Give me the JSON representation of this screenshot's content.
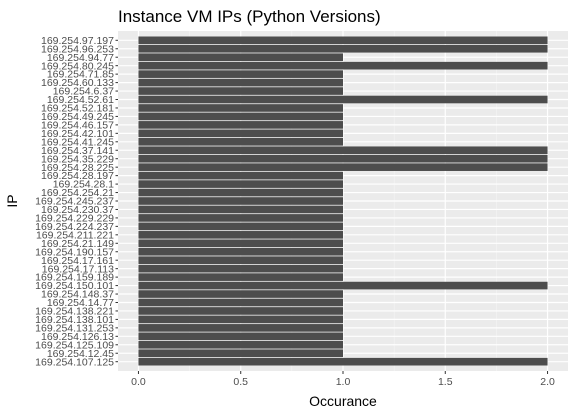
{
  "chart_data": {
    "type": "bar",
    "orientation": "horizontal",
    "title": "Instance VM IPs (Python Versions)",
    "xlabel": "Occurance",
    "ylabel": "IP",
    "xlim": [
      0,
      2
    ],
    "xticks": [
      "0.0",
      "0.5",
      "1.0",
      "1.5",
      "2.0"
    ],
    "grid": true,
    "background": "#ebebeb",
    "bar_color": "#4d4d4d",
    "categories": [
      "169.254.97.197",
      "169.254.96.253",
      "169.254.94.77",
      "169.254.80.245",
      "169.254.71.85",
      "169.254.60.133",
      "169.254.6.37",
      "169.254.52.61",
      "169.254.52.181",
      "169.254.49.245",
      "169.254.46.157",
      "169.254.42.101",
      "169.254.41.245",
      "169.254.37.141",
      "169.254.35.229",
      "169.254.28.225",
      "169.254.28.197",
      "169.254.28.1",
      "169.254.254.21",
      "169.254.245.237",
      "169.254.230.37",
      "169.254.229.229",
      "169.254.224.237",
      "169.254.211.221",
      "169.254.21.149",
      "169.254.190.157",
      "169.254.17.161",
      "169.254.17.113",
      "169.254.159.189",
      "169.254.150.101",
      "169.254.148.37",
      "169.254.14.77",
      "169.254.138.221",
      "169.254.138.101",
      "169.254.131.253",
      "169.254.126.13",
      "169.254.125.109",
      "169.254.12.45",
      "169.254.107.125"
    ],
    "values": [
      2,
      2,
      1,
      2,
      1,
      1,
      1,
      2,
      1,
      1,
      1,
      1,
      1,
      2,
      2,
      2,
      1,
      1,
      1,
      1,
      1,
      1,
      1,
      1,
      1,
      1,
      1,
      1,
      1,
      2,
      1,
      1,
      1,
      1,
      1,
      1,
      1,
      1,
      2
    ]
  }
}
